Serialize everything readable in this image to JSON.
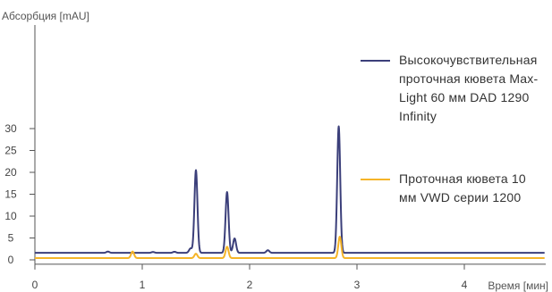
{
  "chart_data": {
    "type": "line",
    "ylabel": "Абсорбция [mAU]",
    "xlabel": "Время [мин]",
    "xlim": [
      0,
      4.8
    ],
    "ylim": [
      -1,
      31
    ],
    "x_ticks": [
      0,
      1,
      2,
      3,
      4
    ],
    "y_ticks": [
      0,
      5,
      10,
      15,
      20,
      25,
      30
    ],
    "grid": false,
    "legend_position": "right",
    "series": [
      {
        "name": "Высокочувствительная проточная кювета Max-Light 60 мм DAD 1290 Infinity",
        "color": "#3b3f7a",
        "baseline": 1.6,
        "peaks": [
          {
            "x": 0.68,
            "height": 0.3
          },
          {
            "x": 1.1,
            "height": 0.2
          },
          {
            "x": 1.3,
            "height": 0.25
          },
          {
            "x": 1.45,
            "height": 1.0
          },
          {
            "x": 1.5,
            "height": 18.9
          },
          {
            "x": 1.79,
            "height": 13.9
          },
          {
            "x": 1.86,
            "height": 3.3
          },
          {
            "x": 2.17,
            "height": 0.6
          },
          {
            "x": 2.83,
            "height": 28.9
          }
        ]
      },
      {
        "name": "Проточная кювета 10 мм VWD серии 1200",
        "color": "#f5b428",
        "baseline": 0.4,
        "peaks": [
          {
            "x": 0.91,
            "height": 1.5
          },
          {
            "x": 1.5,
            "height": 1.0
          },
          {
            "x": 1.79,
            "height": 2.6
          },
          {
            "x": 2.84,
            "height": 4.9
          }
        ]
      }
    ]
  },
  "legend": {
    "series1_label": "Высокочувствительная проточная кювета Max-Light 60 мм DAD 1290 Infinity",
    "series2_label": "Проточная кювета 10 мм VWD серии 1200"
  }
}
